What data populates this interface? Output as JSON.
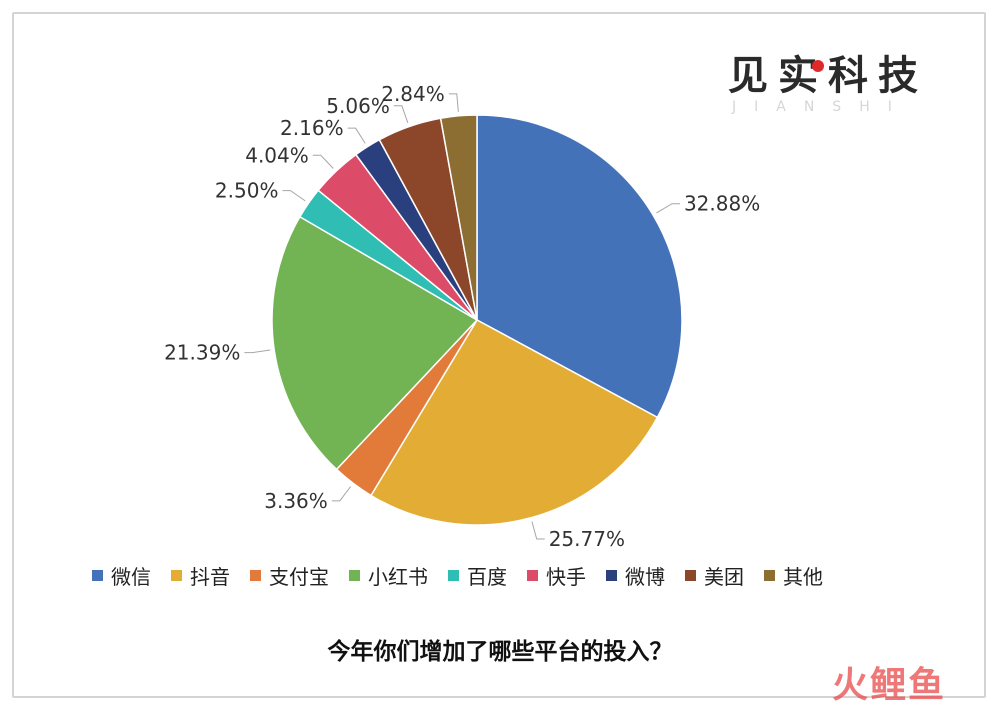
{
  "brand": {
    "name": "见实科技",
    "sub": "JIANSHI"
  },
  "caption": "今年你们增加了哪些平台的投入？",
  "watermark": "火鲤鱼",
  "chart_data": {
    "type": "pie",
    "title": "今年你们增加了哪些平台的投入？",
    "legend_position": "bottom",
    "slices": [
      {
        "label": "微信",
        "value": 32.88,
        "display": "32.88%",
        "color": "#4472b8"
      },
      {
        "label": "抖音",
        "value": 25.77,
        "display": "25.77%",
        "color": "#e3ac35"
      },
      {
        "label": "支付宝",
        "value": 3.36,
        "display": "3.36%",
        "color": "#e27b3a"
      },
      {
        "label": "小红书",
        "value": 21.39,
        "display": "21.39%",
        "color": "#72b454"
      },
      {
        "label": "百度",
        "value": 2.5,
        "display": "2.50%",
        "color": "#2fbdb4"
      },
      {
        "label": "快手",
        "value": 4.04,
        "display": "4.04%",
        "color": "#dc4c68"
      },
      {
        "label": "微博",
        "value": 2.16,
        "display": "2.16%",
        "color": "#2a3f7e"
      },
      {
        "label": "美团",
        "value": 5.06,
        "display": "5.06%",
        "color": "#8c462a"
      },
      {
        "label": "其他",
        "value": 2.84,
        "display": "2.84%",
        "color": "#8c6d32"
      }
    ]
  }
}
